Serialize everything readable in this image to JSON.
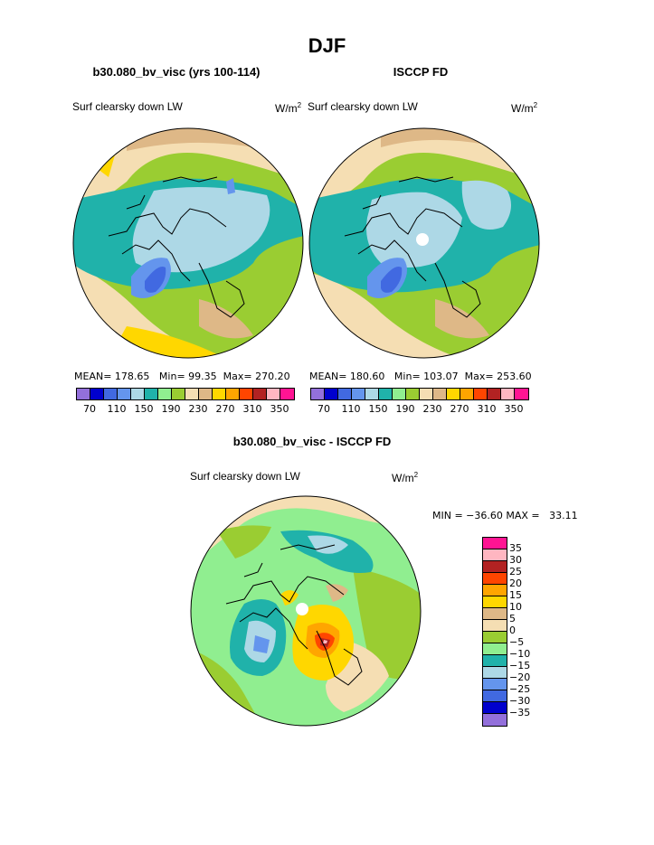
{
  "main_title": "DJF",
  "panels": [
    {
      "case_title": "b30.080_bv_visc (yrs 100-114)",
      "var_label": "Surf clearsky down LW",
      "units_base": "W/m",
      "units_sup": "2",
      "stats": {
        "mean_label": "MEAN=",
        "mean": "178.65",
        "min_label": "Min=",
        "min": "99.35",
        "max_label": "Max=",
        "max": "270.20"
      }
    },
    {
      "case_title": "ISCCP FD",
      "var_label": "Surf clearsky down LW",
      "units_base": "W/m",
      "units_sup": "2",
      "stats": {
        "mean_label": "MEAN=",
        "mean": "180.60",
        "min_label": "Min=",
        "min": "103.07",
        "max_label": "Max=",
        "max": "253.60"
      }
    }
  ],
  "colorbar_top": {
    "colors": [
      "#9370db",
      "#0000cd",
      "#4169e1",
      "#6495ed",
      "#add8e6",
      "#20b2aa",
      "#90ee90",
      "#9acd32",
      "#f5deb3",
      "#deb887",
      "#ffd700",
      "#ffa500",
      "#ff4500",
      "#b22222",
      "#ffb6c1",
      "#ff1493"
    ],
    "labels": [
      "70",
      "110",
      "150",
      "190",
      "230",
      "270",
      "310",
      "350"
    ]
  },
  "diff": {
    "title": "b30.080_bv_visc - ISCCP FD",
    "var_label": "Surf clearsky down LW",
    "units_base": "W/m",
    "units_sup": "2",
    "minmax": "MIN = −36.60 MAX =   33.11"
  },
  "colorbar_diff": {
    "colors": [
      "#ff1493",
      "#ffb6c1",
      "#b22222",
      "#ff4500",
      "#ffa500",
      "#ffd700",
      "#deb887",
      "#f5deb3",
      "#9acd32",
      "#90ee90",
      "#20b2aa",
      "#add8e6",
      "#6495ed",
      "#4169e1",
      "#0000cd",
      "#9370db"
    ],
    "labels": [
      "35",
      "30",
      "25",
      "20",
      "15",
      "10",
      "5",
      "0",
      "−5",
      "−10",
      "−15",
      "−20",
      "−25",
      "−30",
      "−35"
    ]
  }
}
